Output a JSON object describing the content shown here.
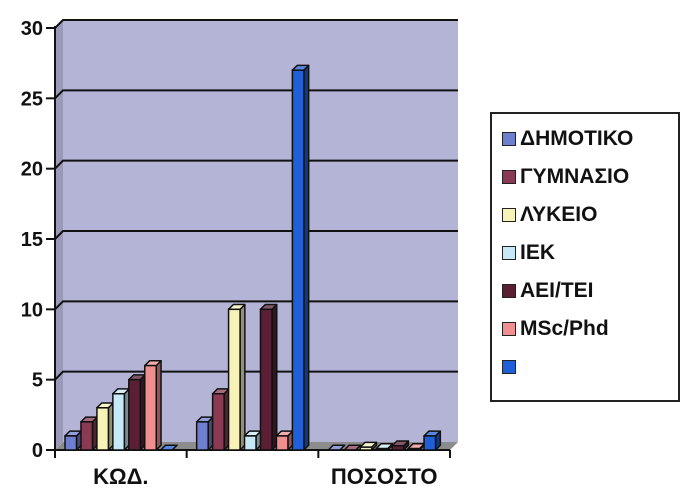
{
  "chart_data": {
    "type": "bar",
    "style": "3d-clustered",
    "categories": [
      "ΚΩΔ.",
      "",
      "ΠΟΣΟΣΤΟ"
    ],
    "series": [
      {
        "name": "ΔΗΜΟΤΙΚΟ",
        "color": "#6f7fd0",
        "values": [
          1,
          2,
          0
        ]
      },
      {
        "name": "ΓΥΜΝΑΣΙΟ",
        "color": "#8a3a52",
        "values": [
          2,
          4,
          0
        ]
      },
      {
        "name": "ΛΥΚΕΙΟ",
        "color": "#f6f2b8",
        "values": [
          3,
          10,
          0.2
        ]
      },
      {
        "name": "ΙΕΚ",
        "color": "#c7e8f6",
        "values": [
          4,
          1,
          0.1
        ]
      },
      {
        "name": "ΑΕΙ/ΤΕΙ",
        "color": "#5a1f35",
        "values": [
          5,
          10,
          0.3
        ]
      },
      {
        "name": "MSc/Phd",
        "color": "#f08f8f",
        "values": [
          6,
          1,
          0.1
        ]
      },
      {
        "name": "",
        "color": "#1f5fd8",
        "values": [
          0,
          27,
          1
        ]
      }
    ],
    "ylim": [
      0,
      30
    ],
    "yticks": [
      0,
      5,
      10,
      15,
      20,
      25,
      30
    ],
    "grid": true,
    "legend_position": "right",
    "plot_color": "#b4b4d6",
    "floor_color": "#8c8c8c"
  }
}
